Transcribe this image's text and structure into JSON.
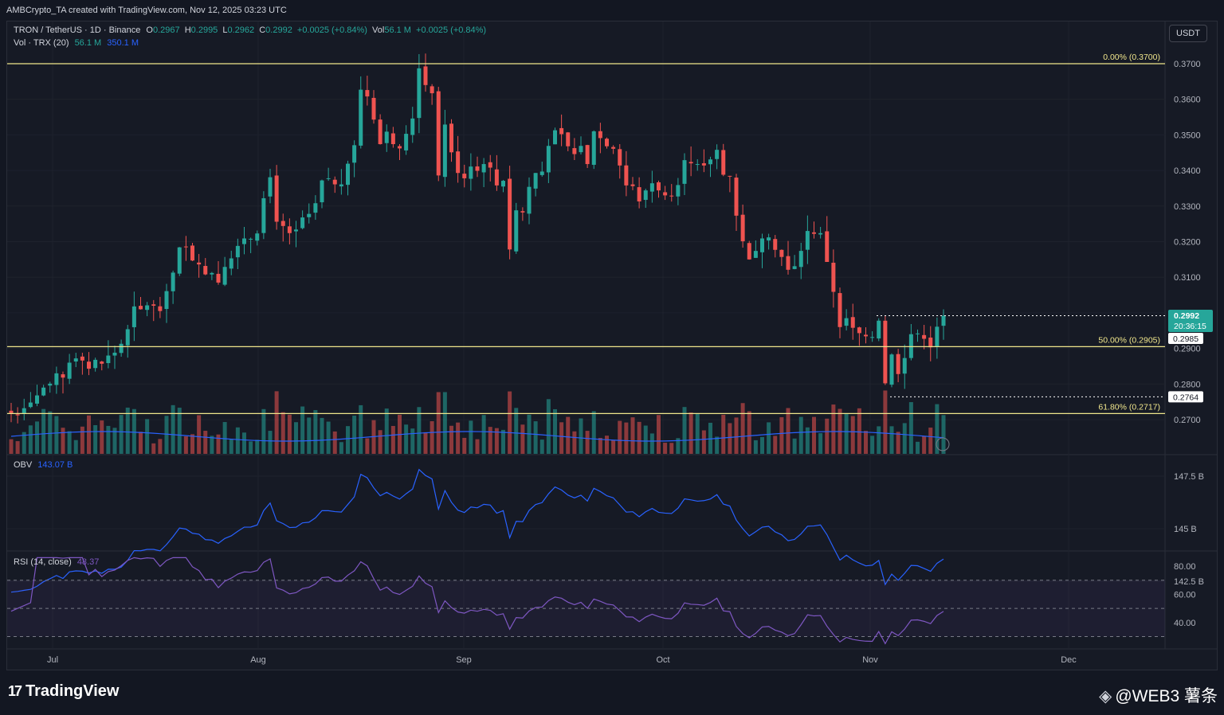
{
  "header": {
    "credit": "AMBCrypto_TA created with TradingView.com, Nov 12, 2025 03:23 UTC"
  },
  "legend": {
    "symbol": "TRON / TetherUS · 1D · Binance",
    "o_label": "O",
    "o": "0.2967",
    "h_label": "H",
    "h": "0.2995",
    "l_label": "L",
    "l": "0.2962",
    "c_label": "C",
    "c": "0.2992",
    "change": "+0.0025 (+0.84%)",
    "vol_label": "Vol",
    "vol": "56.1 M",
    "vol_change": "+0.0025 (+0.84%)",
    "vol_ind": "Vol · TRX (20)",
    "vol_ind_v1": "56.1 M",
    "vol_ind_v2": "350.1 M",
    "obv_label": "OBV",
    "obv": "143.07 B",
    "rsi_label": "RSI (14, close)",
    "rsi": "48.37"
  },
  "currency_button": "USDT",
  "price_axis": [
    "0.3700",
    "0.3600",
    "0.3500",
    "0.3400",
    "0.3300",
    "0.3200",
    "0.3100",
    "0.2900",
    "0.2800",
    "0.2700"
  ],
  "obv_axis": [
    "147.5 B",
    "145 B",
    "142.5 B"
  ],
  "rsi_axis": [
    "80.00",
    "60.00",
    "40.00"
  ],
  "x_axis": [
    "Jul",
    "Aug",
    "Sep",
    "Oct",
    "Nov",
    "Dec"
  ],
  "fib_levels": [
    {
      "label": "0.00% (0.3700)",
      "price": 0.37
    },
    {
      "label": "50.00% (0.2905)",
      "price": 0.2905
    },
    {
      "label": "61.80% (0.2717)",
      "price": 0.2717
    }
  ],
  "price_tags": {
    "last": "0.2992",
    "countdown": "20:36:15",
    "prev": "0.2985",
    "low_marker": "0.2764"
  },
  "footer": {
    "brand": "TradingView",
    "watermark": "@WEB3 薯条"
  },
  "colors": {
    "up": "#26a69a",
    "down": "#ef5350",
    "fib": "#f0e68c",
    "obv": "#2962ff",
    "rsi": "#7e57c2",
    "volma": "#2962ff"
  },
  "chart_data": {
    "type": "candlestick",
    "title": "TRON / TetherUS · 1D · Binance",
    "price_range": [
      0.2645,
      0.371
    ],
    "obv_range": [
      141.6,
      149.8
    ],
    "rsi_range": [
      20,
      87
    ],
    "last": {
      "open": 0.2967,
      "high": 0.2995,
      "low": 0.2962,
      "close": 0.2992,
      "volume": "56.1M"
    },
    "series": [
      {
        "name": "TRXUSDT (approx. closes, daily)",
        "closes": [
          0.2718,
          0.2712,
          0.2732,
          0.2748,
          0.2768,
          0.279,
          0.2801,
          0.283,
          0.2818,
          0.286,
          0.2872,
          0.2866,
          0.2843,
          0.2868,
          0.2857,
          0.288,
          0.2888,
          0.2913,
          0.2954,
          0.3018,
          0.301,
          0.3021,
          0.302,
          0.3005,
          0.3061,
          0.3113,
          0.3184,
          0.3185,
          0.3147,
          0.3136,
          0.3108,
          0.3112,
          0.3085,
          0.3129,
          0.3153,
          0.3188,
          0.3209,
          0.3208,
          0.3223,
          0.3322,
          0.3381,
          0.3256,
          0.3244,
          0.3224,
          0.3234,
          0.3268,
          0.3278,
          0.3308,
          0.3372,
          0.3378,
          0.3361,
          0.3361,
          0.3419,
          0.3471,
          0.3627,
          0.3608,
          0.3543,
          0.3474,
          0.3509,
          0.3474,
          0.3462,
          0.3503,
          0.3546,
          0.3687,
          0.364,
          0.3617,
          0.3386,
          0.3529,
          0.3451,
          0.3393,
          0.3378,
          0.3411,
          0.3399,
          0.3418,
          0.3408,
          0.3358,
          0.3371,
          0.3178,
          0.3288,
          0.3282,
          0.3354,
          0.3393,
          0.3397,
          0.3469,
          0.3513,
          0.3502,
          0.3468,
          0.3446,
          0.3469,
          0.3418,
          0.351,
          0.3491,
          0.3468,
          0.3461,
          0.3414,
          0.3358,
          0.3356,
          0.3313,
          0.3344,
          0.3364,
          0.3344,
          0.333,
          0.3327,
          0.3359,
          0.3429,
          0.342,
          0.3418,
          0.3414,
          0.3431,
          0.3458,
          0.3388,
          0.3383,
          0.3273,
          0.3201,
          0.315,
          0.3174,
          0.3209,
          0.3212,
          0.3177,
          0.3157,
          0.3121,
          0.3131,
          0.3174,
          0.323,
          0.3222,
          0.3224,
          0.3143,
          0.3059,
          0.296,
          0.2985,
          0.2958,
          0.2943,
          0.2934,
          0.2932,
          0.2978,
          0.2802,
          0.2883,
          0.2828,
          0.2873,
          0.294,
          0.2942,
          0.2927,
          0.2903,
          0.2961,
          0.2992
        ]
      }
    ]
  }
}
